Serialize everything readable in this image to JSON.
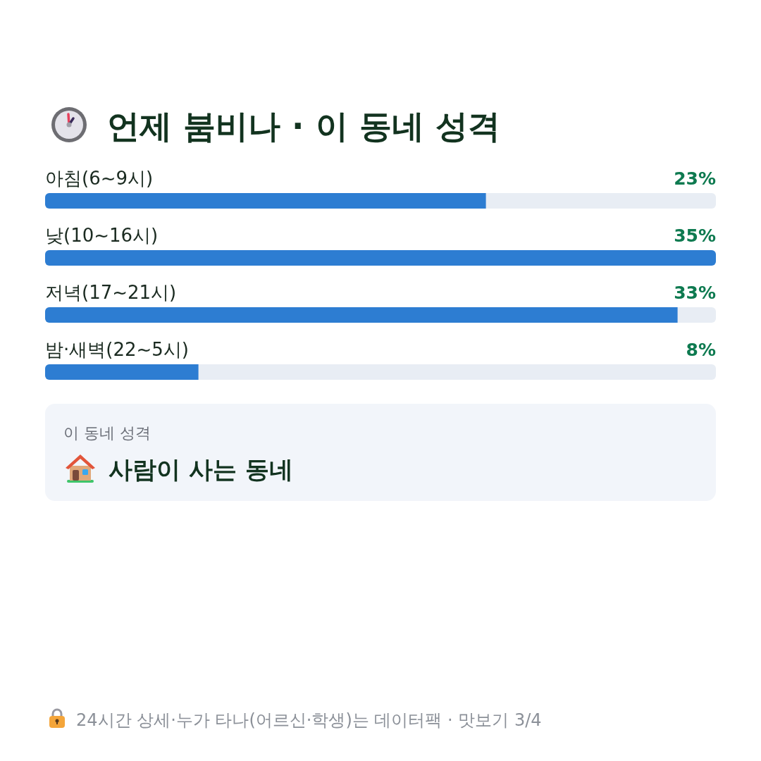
{
  "chart_data": {
    "type": "bar",
    "orientation": "horizontal",
    "title": "언제 붐비나 · 이 동네 성격",
    "categories": [
      "아침(6~9시)",
      "낮(10~16시)",
      "저녁(17~21시)",
      "밤·새벽(22~5시)"
    ],
    "values": [
      23,
      35,
      33,
      8
    ],
    "color": "#2d7dd2",
    "value_labels": [
      "23%",
      "35%",
      "33%",
      "8%"
    ],
    "annotations": [
      "이 동네 성격",
      "사람이 사는 동네",
      "24시간 상세·누가 타나(어르신·학생)는 데이터팩 · 맛보기 3/4"
    ]
  }
}
